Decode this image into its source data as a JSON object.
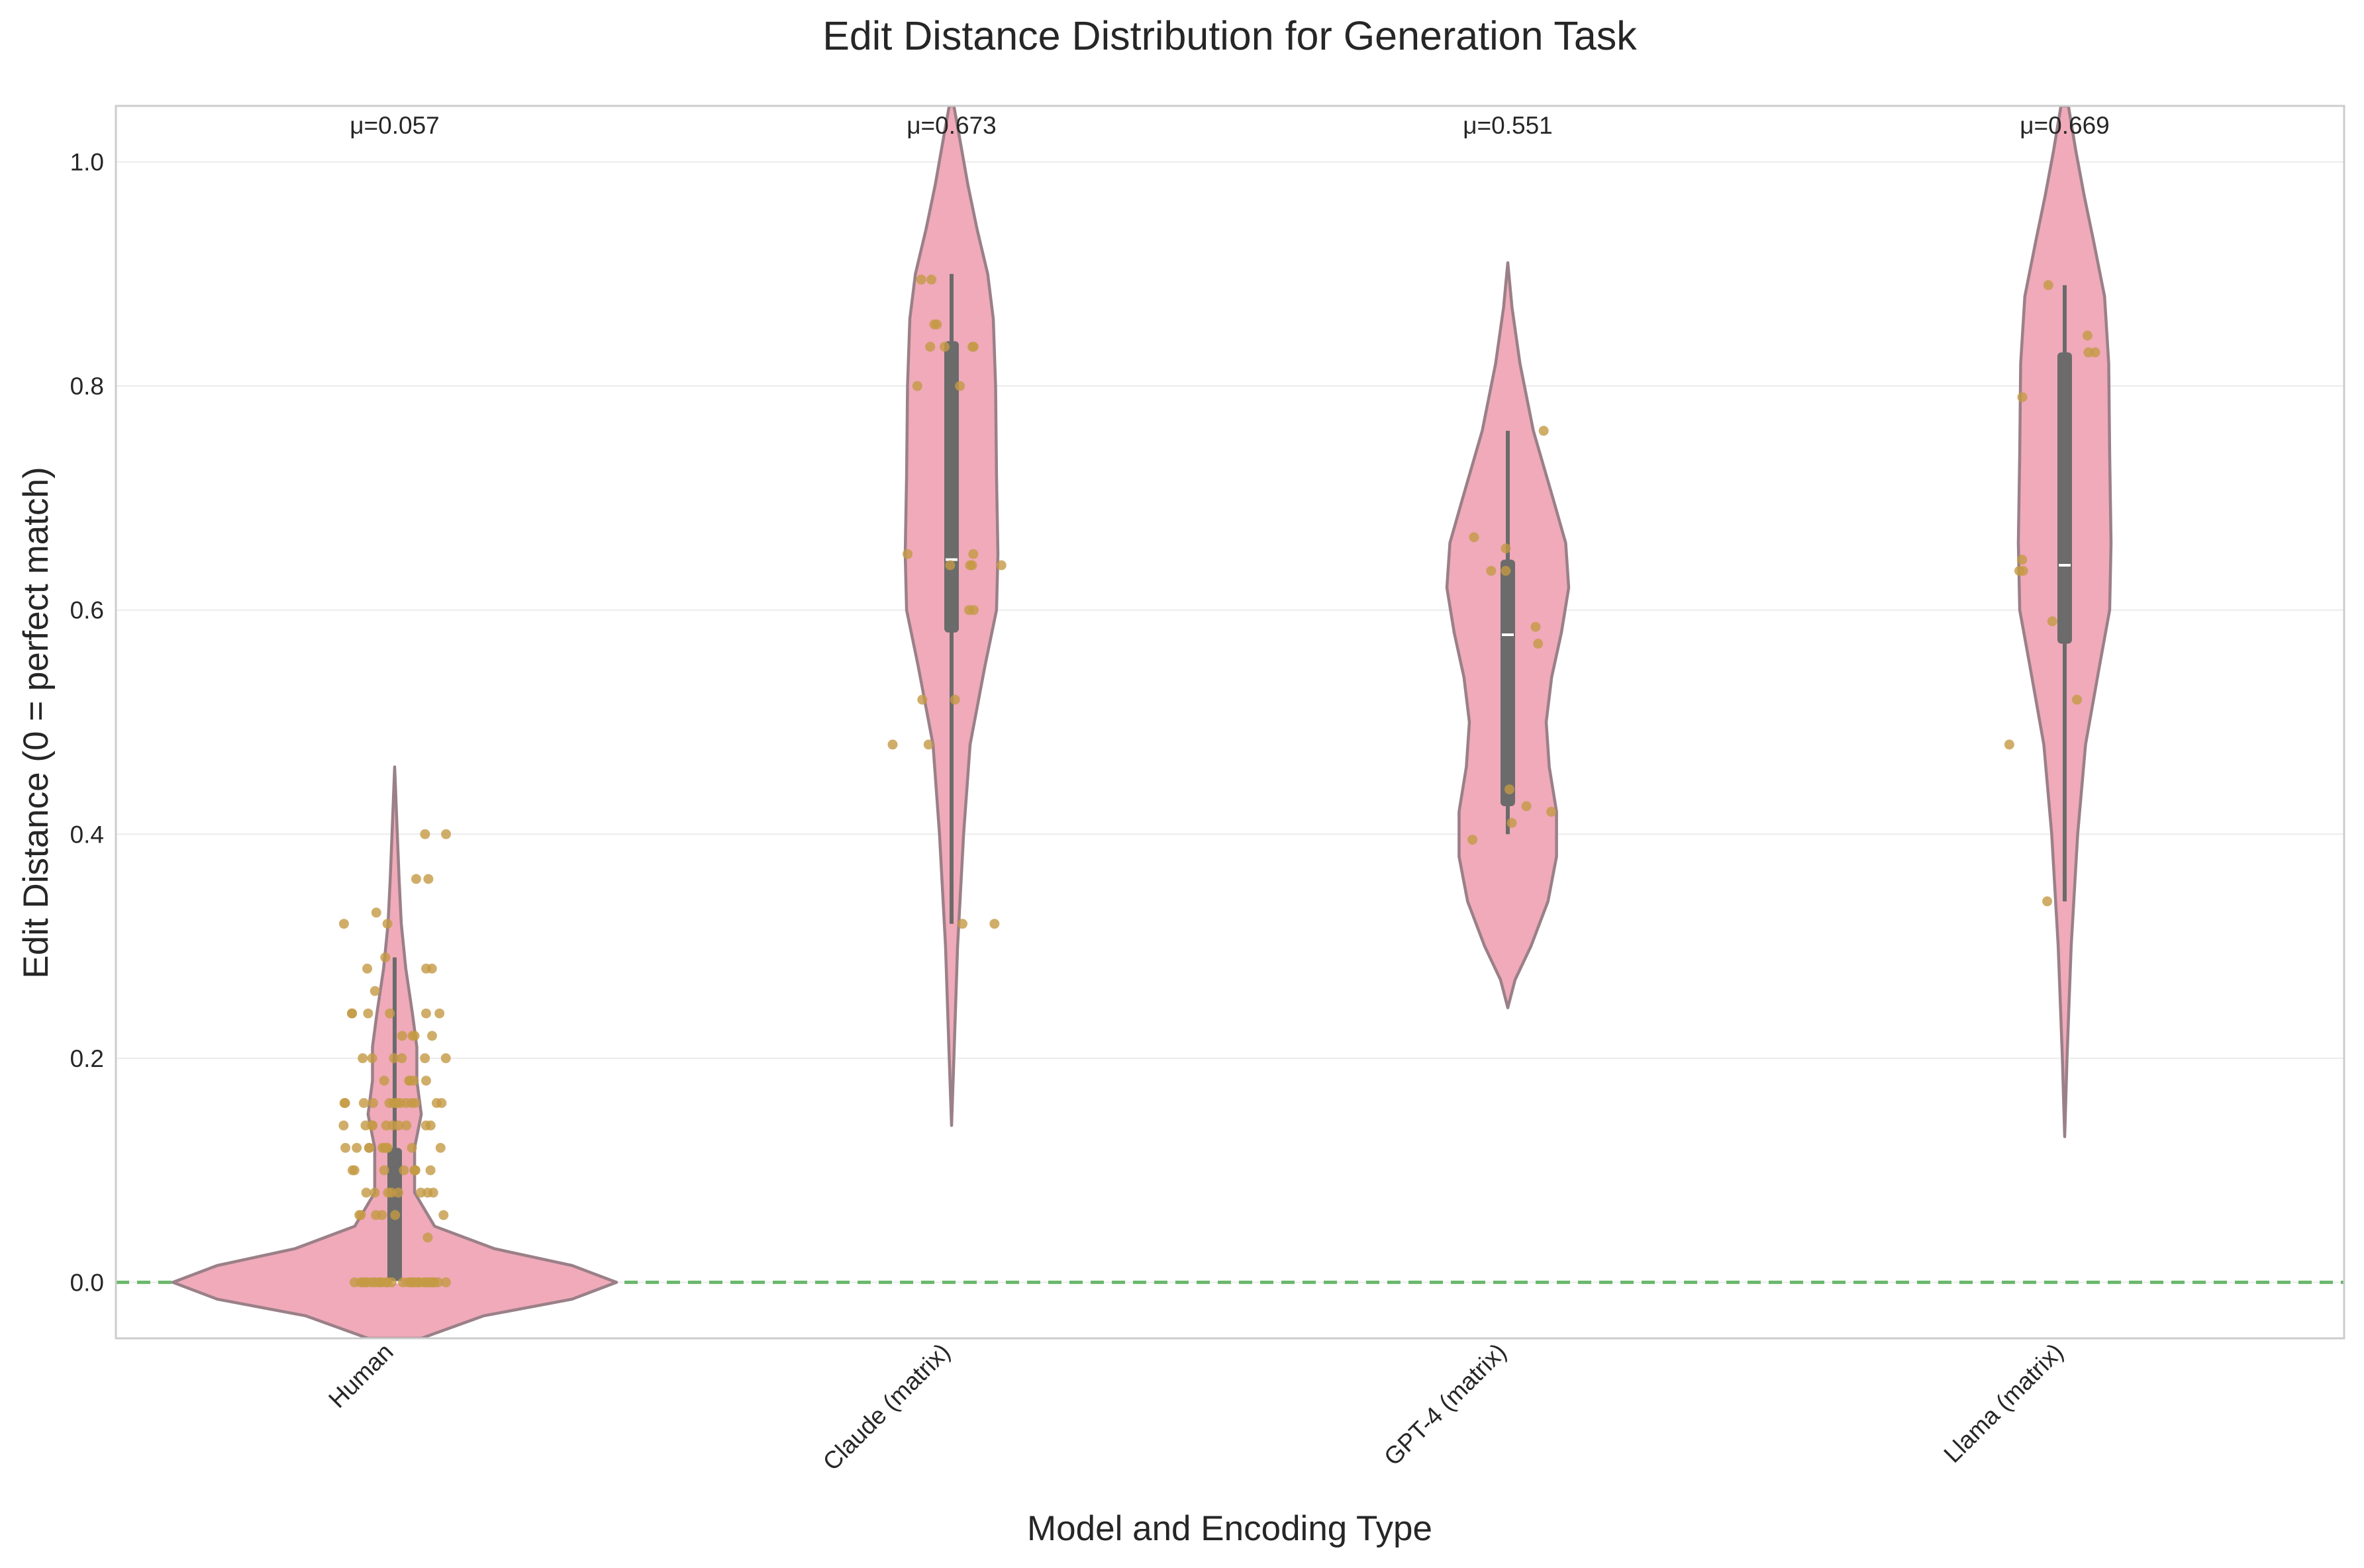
{
  "chart_data": {
    "type": "violin",
    "title": "Edit Distance Distribution for Generation Task",
    "xlabel": "Model and Encoding Type",
    "ylabel": "Edit Distance (0 = perfect match)",
    "ylim": [
      -0.05,
      1.05
    ],
    "yticks": [
      "0.0",
      "0.2",
      "0.4",
      "0.6",
      "0.8",
      "1.0"
    ],
    "grid": "horizontal",
    "reference_line": {
      "y": 0.0,
      "style": "dashed",
      "color": "#69b86c"
    },
    "colors": {
      "violin_fill": "#f0aab9",
      "violin_edge": "#9a8088",
      "box": "#6b6b6b",
      "points": "#c49a45"
    },
    "categories": [
      "Human",
      "Claude (matrix)",
      "GPT-4 (matrix)",
      "Llama (matrix)"
    ],
    "means": [
      "μ=0.057",
      "μ=0.673",
      "μ=0.551",
      "μ=0.669"
    ],
    "series": [
      {
        "name": "Human",
        "box": {
          "whisker_low": 0.0,
          "q1": 0.0,
          "median": 0.0,
          "q3": 0.12,
          "whisker_high": 0.29
        },
        "violin_range": [
          -0.05,
          0.46
        ],
        "density": [
          [
            -0.05,
            0.12
          ],
          [
            -0.03,
            0.4
          ],
          [
            -0.015,
            0.8
          ],
          [
            0.0,
            1.0
          ],
          [
            0.015,
            0.8
          ],
          [
            0.03,
            0.45
          ],
          [
            0.05,
            0.18
          ],
          [
            0.08,
            0.09
          ],
          [
            0.12,
            0.09
          ],
          [
            0.15,
            0.12
          ],
          [
            0.18,
            0.1
          ],
          [
            0.21,
            0.1
          ],
          [
            0.24,
            0.08
          ],
          [
            0.28,
            0.05
          ],
          [
            0.32,
            0.03
          ],
          [
            0.36,
            0.02
          ],
          [
            0.4,
            0.012
          ],
          [
            0.43,
            0.006
          ],
          [
            0.46,
            0.0
          ]
        ],
        "points": [
          0,
          0,
          0,
          0,
          0,
          0,
          0,
          0,
          0,
          0,
          0,
          0,
          0,
          0,
          0,
          0,
          0,
          0,
          0,
          0,
          0,
          0,
          0,
          0,
          0,
          0,
          0,
          0,
          0,
          0,
          0.04,
          0.06,
          0.06,
          0.06,
          0.06,
          0.06,
          0.06,
          0.08,
          0.08,
          0.08,
          0.08,
          0.08,
          0.08,
          0.08,
          0.08,
          0.1,
          0.1,
          0.1,
          0.1,
          0.1,
          0.1,
          0.1,
          0.1,
          0.12,
          0.12,
          0.12,
          0.12,
          0.12,
          0.12,
          0.12,
          0.12,
          0.12,
          0.12,
          0.14,
          0.14,
          0.14,
          0.14,
          0.14,
          0.14,
          0.14,
          0.14,
          0.14,
          0.14,
          0.16,
          0.16,
          0.16,
          0.16,
          0.16,
          0.16,
          0.16,
          0.16,
          0.16,
          0.16,
          0.16,
          0.16,
          0.16,
          0.16,
          0.18,
          0.18,
          0.18,
          0.18,
          0.18,
          0.2,
          0.2,
          0.2,
          0.2,
          0.2,
          0.2,
          0.22,
          0.22,
          0.22,
          0.22,
          0.24,
          0.24,
          0.24,
          0.24,
          0.24,
          0.24,
          0.26,
          0.28,
          0.28,
          0.28,
          0.29,
          0.32,
          0.32,
          0.33,
          0.36,
          0.36,
          0.4,
          0.4
        ]
      },
      {
        "name": "Claude (matrix)",
        "box": {
          "whisker_low": 0.32,
          "q1": 0.58,
          "median": 0.645,
          "q3": 0.84,
          "whisker_high": 0.9
        },
        "violin_range": [
          0.14,
          1.05
        ],
        "density": [
          [
            0.14,
            0.0
          ],
          [
            0.2,
            0.05
          ],
          [
            0.3,
            0.13
          ],
          [
            0.4,
            0.26
          ],
          [
            0.48,
            0.4
          ],
          [
            0.55,
            0.72
          ],
          [
            0.6,
            0.97
          ],
          [
            0.65,
            1.0
          ],
          [
            0.72,
            0.97
          ],
          [
            0.8,
            0.95
          ],
          [
            0.86,
            0.9
          ],
          [
            0.9,
            0.78
          ],
          [
            0.94,
            0.55
          ],
          [
            0.98,
            0.35
          ],
          [
            1.02,
            0.18
          ],
          [
            1.05,
            0.05
          ]
        ],
        "points": [
          0.32,
          0.32,
          0.48,
          0.48,
          0.52,
          0.52,
          0.6,
          0.6,
          0.64,
          0.64,
          0.64,
          0.64,
          0.65,
          0.65,
          0.8,
          0.8,
          0.835,
          0.835,
          0.835,
          0.835,
          0.855,
          0.855,
          0.895,
          0.895
        ]
      },
      {
        "name": "GPT-4 (matrix)",
        "box": {
          "whisker_low": 0.4,
          "q1": 0.425,
          "median": 0.578,
          "q3": 0.645,
          "whisker_high": 0.76
        },
        "violin_range": [
          0.245,
          0.91
        ],
        "density": [
          [
            0.245,
            0.0
          ],
          [
            0.27,
            0.12
          ],
          [
            0.3,
            0.38
          ],
          [
            0.34,
            0.66
          ],
          [
            0.38,
            0.8
          ],
          [
            0.42,
            0.8
          ],
          [
            0.46,
            0.68
          ],
          [
            0.5,
            0.63
          ],
          [
            0.54,
            0.72
          ],
          [
            0.58,
            0.88
          ],
          [
            0.62,
            1.0
          ],
          [
            0.66,
            0.95
          ],
          [
            0.7,
            0.74
          ],
          [
            0.76,
            0.42
          ],
          [
            0.82,
            0.2
          ],
          [
            0.87,
            0.07
          ],
          [
            0.91,
            0.0
          ]
        ],
        "points": [
          0.395,
          0.41,
          0.42,
          0.425,
          0.44,
          0.57,
          0.585,
          0.635,
          0.635,
          0.655,
          0.665,
          0.76
        ]
      },
      {
        "name": "Llama (matrix)",
        "box": {
          "whisker_low": 0.34,
          "q1": 0.57,
          "median": 0.64,
          "q3": 0.83,
          "whisker_high": 0.89
        },
        "violin_range": [
          0.13,
          1.05
        ],
        "density": [
          [
            0.13,
            0.0
          ],
          [
            0.2,
            0.05
          ],
          [
            0.3,
            0.14
          ],
          [
            0.4,
            0.28
          ],
          [
            0.48,
            0.45
          ],
          [
            0.55,
            0.75
          ],
          [
            0.6,
            0.97
          ],
          [
            0.66,
            1.0
          ],
          [
            0.74,
            0.97
          ],
          [
            0.82,
            0.95
          ],
          [
            0.88,
            0.86
          ],
          [
            0.93,
            0.62
          ],
          [
            0.97,
            0.42
          ],
          [
            1.01,
            0.24
          ],
          [
            1.05,
            0.08
          ]
        ],
        "points": [
          0.34,
          0.48,
          0.52,
          0.59,
          0.635,
          0.635,
          0.645,
          0.79,
          0.83,
          0.83,
          0.845,
          0.89
        ]
      }
    ]
  }
}
